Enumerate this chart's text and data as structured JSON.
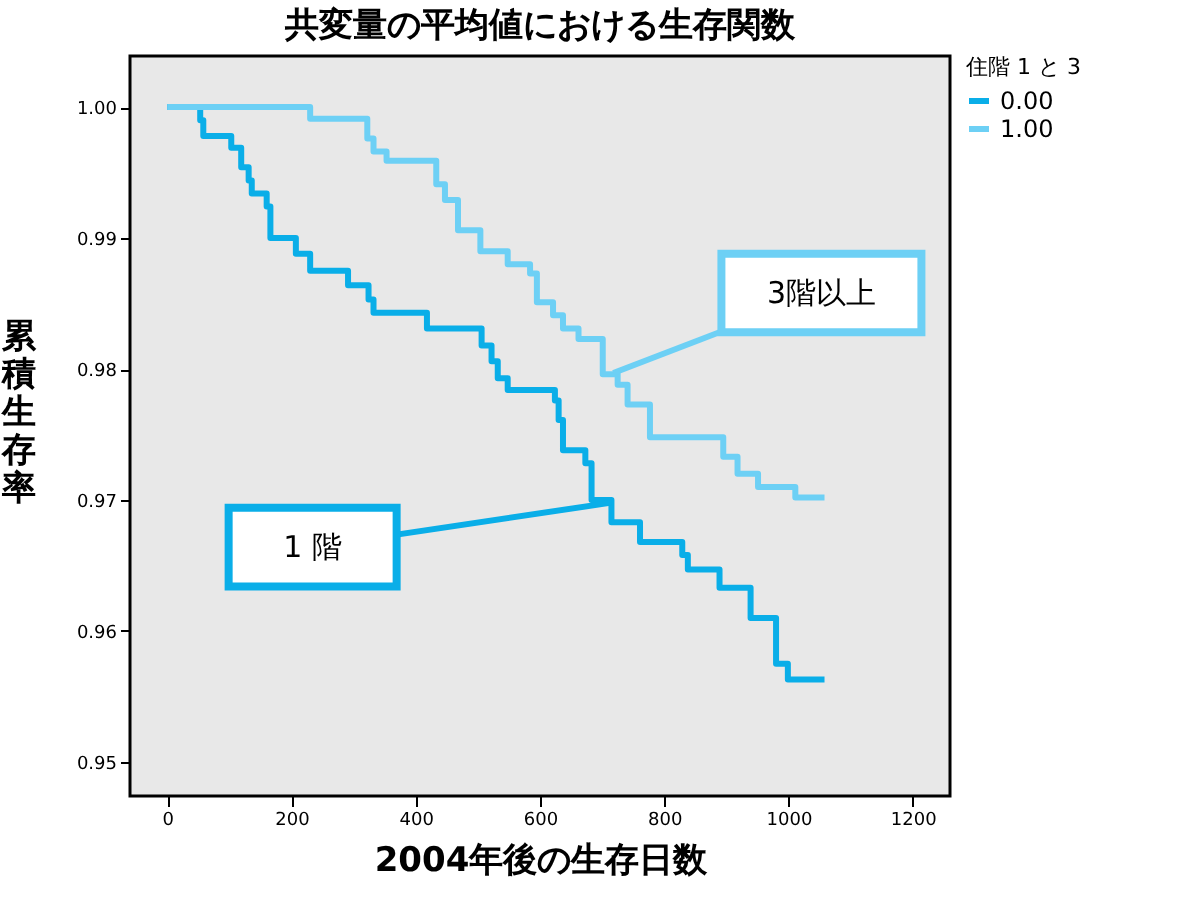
{
  "chart_data": {
    "type": "step",
    "title": "共変量の平均値における生存関数",
    "xlabel": "2004年後の生存日数",
    "ylabel": "累積生存率",
    "legend_title": "住階 1 と 3",
    "series": [
      {
        "name": "0.00",
        "color": "#0aaee8",
        "x": [
          0,
          53,
          58,
          103,
          119,
          131,
          136,
          160,
          166,
          207,
          230,
          291,
          324,
          332,
          418,
          506,
          522,
          532,
          548,
          624,
          630,
          637,
          673,
          683,
          715,
          761,
          829,
          838,
          889,
          939,
          980,
          999,
          1058
        ],
        "values": [
          1.0,
          0.999,
          0.9978,
          0.9969,
          0.9954,
          0.9944,
          0.9934,
          0.9924,
          0.99,
          0.9888,
          0.9875,
          0.9864,
          0.9853,
          0.9843,
          0.9831,
          0.9818,
          0.9806,
          0.9793,
          0.9784,
          0.9776,
          0.9761,
          0.9738,
          0.9728,
          0.97,
          0.9683,
          0.9668,
          0.9658,
          0.9647,
          0.9633,
          0.961,
          0.9575,
          0.9563,
          0.9563
        ]
      },
      {
        "name": "1.00",
        "color": "#6dd0f5",
        "x": [
          0,
          230,
          322,
          332,
          353,
          433,
          447,
          468,
          504,
          548,
          584,
          595,
          621,
          637,
          662,
          701,
          725,
          741,
          777,
          895,
          918,
          951,
          1011,
          1058
        ],
        "values": [
          1.0,
          0.9991,
          0.9976,
          0.9966,
          0.9959,
          0.9941,
          0.9929,
          0.9906,
          0.989,
          0.988,
          0.9873,
          0.9851,
          0.9841,
          0.9831,
          0.9823,
          0.9796,
          0.9788,
          0.9773,
          0.9748,
          0.9733,
          0.972,
          0.971,
          0.9702,
          0.9702
        ]
      }
    ],
    "annotations": [
      {
        "text": "3階以上",
        "x": 718,
        "y": 0.9797
      },
      {
        "text": "1 階",
        "x": 715,
        "y": 0.9698
      }
    ],
    "xlim": [
      -60,
      1260
    ],
    "xticks": [
      0,
      200,
      400,
      600,
      800,
      1000,
      1200
    ],
    "ylim": [
      0.9474,
      1.0039
    ],
    "yticks": [
      {
        "value": 0.95,
        "label": "0.95"
      },
      {
        "value": 0.96,
        "label": "0.96"
      },
      {
        "value": 0.97,
        "label": "0.97"
      },
      {
        "value": 0.98,
        "label": "0.98"
      },
      {
        "value": 0.99,
        "label": "0.99"
      },
      {
        "value": 1.0,
        "label": "1.00"
      }
    ],
    "grid": false,
    "legend": "top right",
    "marker": "none",
    "line_style": "solid"
  }
}
